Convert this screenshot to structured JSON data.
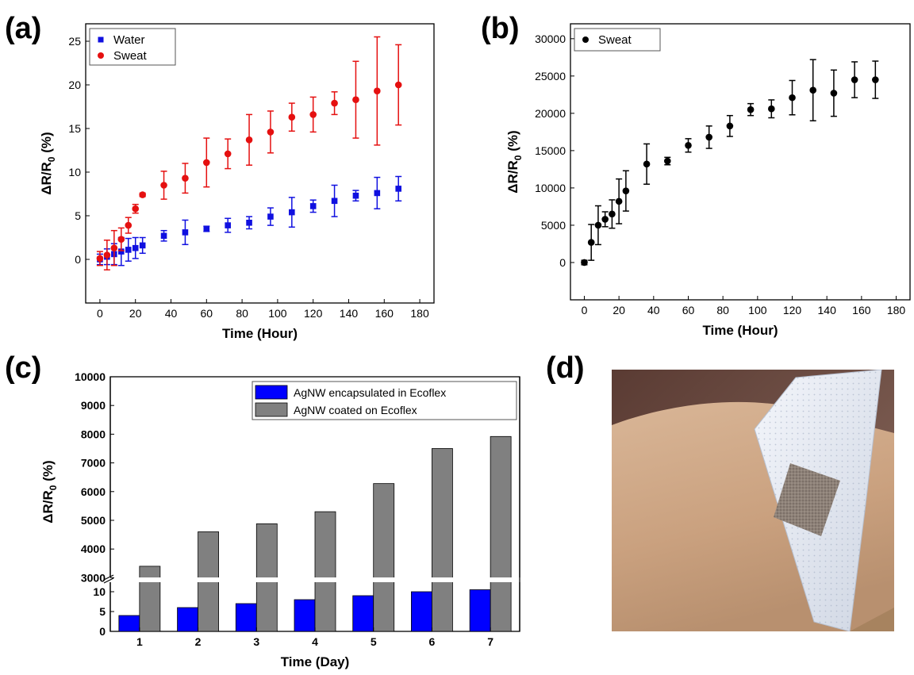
{
  "panels": {
    "a": {
      "label": "(a)"
    },
    "b": {
      "label": "(b)"
    },
    "c": {
      "label": "(c)"
    },
    "d": {
      "label": "(d)"
    }
  },
  "chart_data": [
    {
      "id": "a",
      "type": "scatter",
      "error_bars": true,
      "xlabel": "Time (Hour)",
      "ylabel_main": "ΔR/R",
      "ylabel_sub": "0",
      "ylabel_unit": " (%)",
      "xlim": [
        -8,
        188
      ],
      "ylim": [
        -5,
        27
      ],
      "xticks": [
        0,
        20,
        40,
        60,
        80,
        100,
        120,
        140,
        160,
        180
      ],
      "yticks": [
        0,
        5,
        10,
        15,
        20,
        25
      ],
      "legend_position": "top-left",
      "series": [
        {
          "name": "Water",
          "color": "#1010e0",
          "marker": "square",
          "x": [
            0,
            4,
            8,
            12,
            16,
            20,
            24,
            36,
            48,
            60,
            72,
            84,
            96,
            108,
            120,
            132,
            144,
            156,
            168
          ],
          "y": [
            0,
            0.3,
            0.6,
            0.9,
            1.1,
            1.3,
            1.6,
            2.7,
            3.1,
            3.5,
            3.9,
            4.2,
            4.9,
            5.4,
            6.1,
            6.7,
            7.3,
            7.6,
            8.1
          ],
          "err": [
            0.6,
            0.9,
            1.2,
            1.6,
            1.3,
            1.2,
            0.9,
            0.6,
            1.4,
            0.3,
            0.8,
            0.7,
            1.0,
            1.7,
            0.7,
            1.8,
            0.6,
            1.8,
            1.4
          ]
        },
        {
          "name": "Sweat",
          "color": "#e51010",
          "marker": "circle",
          "x": [
            0,
            4,
            8,
            12,
            16,
            20,
            24,
            36,
            48,
            60,
            72,
            84,
            96,
            108,
            120,
            132,
            144,
            156,
            168
          ],
          "y": [
            0.1,
            0.5,
            1.3,
            2.3,
            3.9,
            5.8,
            7.4,
            8.5,
            9.3,
            11.1,
            12.1,
            13.7,
            14.6,
            16.3,
            16.6,
            17.9,
            18.3,
            19.3,
            20.0
          ],
          "err": [
            0.8,
            1.7,
            2.0,
            1.3,
            0.9,
            0.5,
            0.2,
            1.6,
            1.7,
            2.8,
            1.7,
            2.9,
            2.4,
            1.6,
            2.0,
            1.3,
            4.4,
            6.2,
            4.6
          ]
        }
      ]
    },
    {
      "id": "b",
      "type": "scatter",
      "error_bars": true,
      "xlabel": "Time (Hour)",
      "ylabel_main": "ΔR/R",
      "ylabel_sub": "0",
      "ylabel_unit": " (%)",
      "xlim": [
        -8,
        188
      ],
      "ylim": [
        -5000,
        32000
      ],
      "xticks": [
        0,
        20,
        40,
        60,
        80,
        100,
        120,
        140,
        160,
        180
      ],
      "yticks": [
        0,
        5000,
        10000,
        15000,
        20000,
        25000,
        30000
      ],
      "legend_position": "top-left",
      "series": [
        {
          "name": "Sweat",
          "color": "#000000",
          "marker": "circle",
          "x": [
            0,
            4,
            8,
            12,
            16,
            20,
            24,
            36,
            48,
            60,
            72,
            84,
            96,
            108,
            120,
            132,
            144,
            156,
            168
          ],
          "y": [
            0,
            2700,
            5000,
            5800,
            6500,
            8200,
            9600,
            13200,
            13600,
            15700,
            16800,
            18300,
            20500,
            20600,
            22100,
            23100,
            22700,
            24500,
            24500
          ],
          "err": [
            300,
            2400,
            2600,
            1000,
            1900,
            3000,
            2700,
            2700,
            500,
            900,
            1500,
            1400,
            800,
            1200,
            2300,
            4100,
            3100,
            2400,
            2500
          ]
        }
      ]
    },
    {
      "id": "c",
      "type": "bar",
      "xlabel": "Time (Day)",
      "ylabel_main": "ΔR/R",
      "ylabel_sub": "0",
      "ylabel_unit": " (%)",
      "categories": [
        "1",
        "2",
        "3",
        "4",
        "5",
        "6",
        "7"
      ],
      "axis_break": true,
      "lower_ylim": [
        0,
        12
      ],
      "lower_yticks": [
        0,
        5,
        10
      ],
      "upper_ylim": [
        2900,
        10000
      ],
      "upper_yticks": [
        3000,
        4000,
        5000,
        6000,
        7000,
        8000,
        9000,
        10000
      ],
      "legend_position": "top-right",
      "series": [
        {
          "name": "AgNW encapsulated in Ecoflex",
          "color": "#0000ff",
          "values": [
            4,
            6,
            7,
            8,
            9,
            10,
            10.5
          ]
        },
        {
          "name": "AgNW coated on Ecoflex",
          "color": "#808080",
          "values": [
            3400,
            4600,
            4880,
            5300,
            6280,
            7500,
            7920
          ]
        }
      ]
    }
  ]
}
